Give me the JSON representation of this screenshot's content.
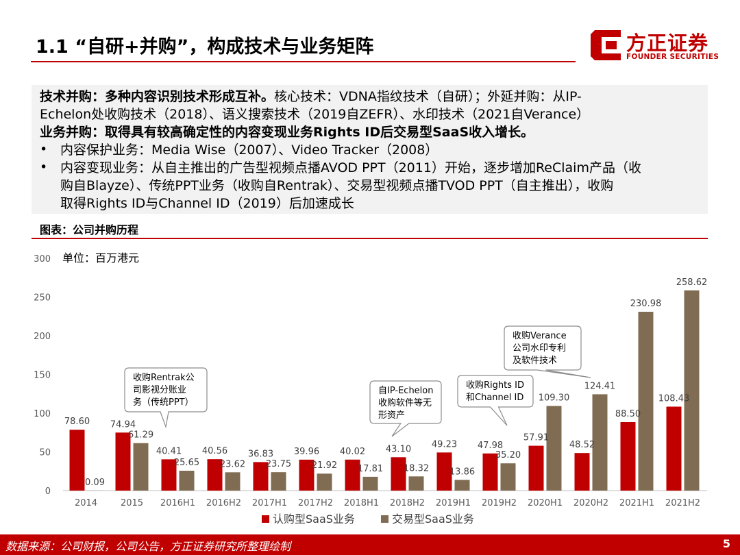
{
  "title": "1.1 “自研+并购”，构成技术与业务矩阵",
  "logo": {
    "cn": "方正证券",
    "en": "FOUNDER SECURITIES",
    "color": "#c00000"
  },
  "summary": {
    "line1_bold": "技术并购：多种内容识别技术形成互补。",
    "line1_rest": "核心技术：VDNA指纹技术（自研）；外延并购：从IP-",
    "line2": "Echelon处收购技术（2018）、语义搜索技术（2019自ZEFR）、水印技术（2021自Verance）",
    "line3_bold": "业务并购：取得具有较高确定性的内容变现业务Rights ID后交易型SaaS收入增长。",
    "bullet_symbol": "•",
    "bullet1": "内容保护业务：Media Wise（2007）、Video Tracker（2008）",
    "bullet2_l1": "内容变现业务：从自主推出的广告型视频点播AVOD PPT（2011）开始，逐步增加ReClaim产品（收",
    "bullet2_l2": "购自Blayze）、传统PPT业务（收购自Rentrak）、交易型视频点播TVOD PPT（自主推出），收购",
    "bullet2_l3": "取得Rights ID与Channel ID（2019）后加速成长"
  },
  "figure_label": "图表：公司并购历程",
  "chart_data": {
    "type": "bar",
    "unit_label": "单位：百万港元",
    "categories": [
      "2014",
      "2015",
      "2016H1",
      "2016H2",
      "2017H1",
      "2017H2",
      "2018H1",
      "2018H2",
      "2019H1",
      "2019H2",
      "2020H1",
      "2020H2",
      "2021H1",
      "2021H2"
    ],
    "series": [
      {
        "name": "认购型SaaS业务",
        "color": "#c00000",
        "values": [
          78.6,
          74.94,
          40.41,
          40.56,
          36.83,
          39.96,
          40.02,
          43.1,
          49.23,
          47.98,
          57.91,
          48.52,
          88.5,
          108.43
        ]
      },
      {
        "name": "交易型SaaS业务",
        "color": "#7f6c52",
        "values": [
          0.09,
          61.29,
          25.65,
          23.62,
          23.75,
          21.92,
          17.81,
          18.32,
          13.86,
          35.2,
          109.3,
          124.41,
          230.98,
          258.62
        ]
      }
    ],
    "ylim": [
      0,
      300
    ],
    "yticks": [
      0,
      50,
      100,
      150,
      200,
      250,
      300
    ],
    "legend_position": "bottom",
    "annotations": [
      {
        "lines": [
          "收购Rentrak公",
          "司影视分账业",
          "务（传统PPT）"
        ],
        "category": "2015"
      },
      {
        "lines": [
          "自IP-Echelon",
          "收购软件等无",
          "形资产"
        ],
        "category": "2018H2"
      },
      {
        "lines": [
          "收购Rights ID",
          "和Channel ID"
        ],
        "category": "2019H2"
      },
      {
        "lines": [
          "收购Verance",
          "公司水印专利",
          "及软件技术"
        ],
        "category": "2020H2"
      }
    ]
  },
  "footer": {
    "source": "数据来源：公司财报，公司公告，方正证券研究所整理绘制",
    "page": "5"
  }
}
